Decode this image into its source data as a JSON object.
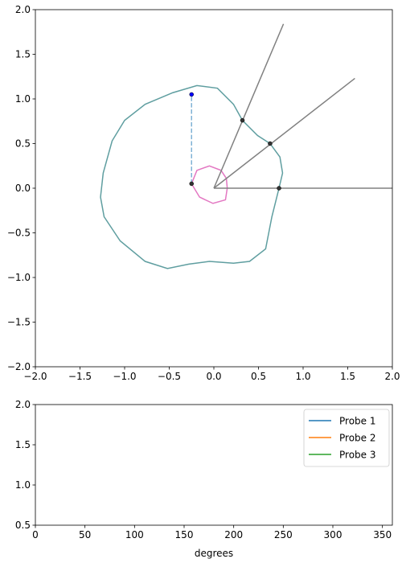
{
  "chart_data": [
    {
      "type": "line",
      "xlim": [
        -2,
        2
      ],
      "ylim": [
        -2,
        2
      ],
      "xticks": [
        {
          "value": -2,
          "label": "−2.0"
        },
        {
          "value": -1.5,
          "label": "−1.5"
        },
        {
          "value": -1,
          "label": "−1.0"
        },
        {
          "value": -0.5,
          "label": "−0.5"
        },
        {
          "value": 0,
          "label": "0.0"
        },
        {
          "value": 0.5,
          "label": "0.5"
        },
        {
          "value": 1,
          "label": "1.0"
        },
        {
          "value": 1.5,
          "label": "1.5"
        },
        {
          "value": 2,
          "label": "2.0"
        }
      ],
      "yticks": [
        {
          "value": -2,
          "label": "−2.0"
        },
        {
          "value": -1.5,
          "label": "−1.5"
        },
        {
          "value": -1,
          "label": "−1.0"
        },
        {
          "value": -0.5,
          "label": "−0.5"
        },
        {
          "value": 0,
          "label": "0.0"
        },
        {
          "value": 0.5,
          "label": "0.5"
        },
        {
          "value": 1,
          "label": "1.0"
        },
        {
          "value": 1.5,
          "label": "1.5"
        },
        {
          "value": 2,
          "label": "2.0"
        }
      ],
      "series": [
        {
          "color": "#5f9ea0",
          "closed": true,
          "x": [
            0.73,
            0.65,
            0.58,
            0.4,
            0.22,
            -0.05,
            -0.28,
            -0.52,
            -0.77,
            -1.05,
            -1.23,
            -1.27,
            -1.24,
            -1.14,
            -1.0,
            -0.77,
            -0.46,
            -0.19,
            0.04,
            0.22,
            0.32,
            0.49,
            0.63,
            0.74,
            0.77
          ],
          "values": [
            0,
            -0.32,
            -0.68,
            -0.82,
            -0.84,
            -0.82,
            -0.85,
            -0.9,
            -0.82,
            -0.59,
            -0.32,
            -0.1,
            0.17,
            0.53,
            0.76,
            0.94,
            1.07,
            1.15,
            1.12,
            0.94,
            0.76,
            0.59,
            0.5,
            0.35,
            0.17
          ]
        },
        {
          "color": "#e377c2",
          "closed": true,
          "x": [
            0.15,
            0.13,
            -0.01,
            -0.16,
            -0.25,
            -0.19,
            -0.05,
            0.08,
            0.14
          ],
          "values": [
            0,
            -0.13,
            -0.17,
            -0.1,
            0.05,
            0.2,
            0.25,
            0.2,
            0.11
          ]
        },
        {
          "color": "#808080",
          "x": [
            0,
            0.78
          ],
          "values": [
            0,
            1.84
          ]
        },
        {
          "color": "#808080",
          "x": [
            0,
            1.58
          ],
          "values": [
            0,
            1.23
          ]
        },
        {
          "color": "#808080",
          "x": [
            0,
            2
          ],
          "values": [
            0,
            0
          ]
        },
        {
          "color": "#7fb2d5",
          "linestyle": "dashed",
          "x": [
            -0.25,
            -0.25
          ],
          "values": [
            0.05,
            1.05
          ]
        },
        {
          "color": "#333333",
          "linestyle": "none",
          "marker": "o",
          "x": [
            0.32,
            0.63,
            0.73,
            -0.25
          ],
          "values": [
            0.76,
            0.5,
            0,
            0.05
          ]
        },
        {
          "color": "#0000ff",
          "linestyle": "none",
          "marker": "o",
          "x": [
            -0.25
          ],
          "values": [
            1.05
          ]
        }
      ]
    },
    {
      "type": "line",
      "xlabel": "degrees",
      "xlim": [
        0,
        360
      ],
      "ylim": [
        0.5,
        2
      ],
      "xticks": [
        0,
        50,
        100,
        150,
        200,
        250,
        300,
        350
      ],
      "yticks": [
        0.5,
        {
          "value": 1,
          "label": "1.0"
        },
        {
          "value": 1.5,
          "label": "1.5"
        },
        {
          "value": 2,
          "label": "2.0"
        }
      ],
      "legend": "upper right",
      "series": [
        {
          "name": "Probe 1",
          "color": "#1f77b4",
          "x": [],
          "values": []
        },
        {
          "name": "Probe 2",
          "color": "#ff7f0e",
          "x": [],
          "values": []
        },
        {
          "name": "Probe 3",
          "color": "#2ca02c",
          "x": [],
          "values": []
        }
      ]
    }
  ]
}
